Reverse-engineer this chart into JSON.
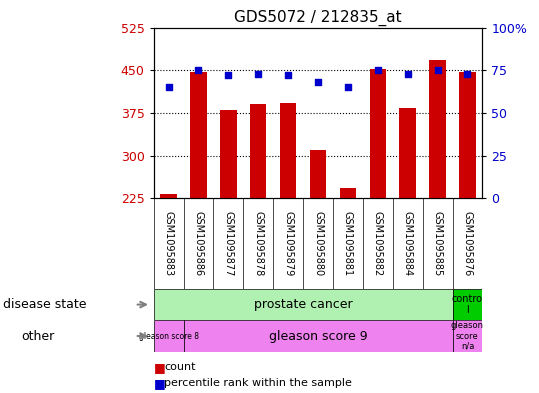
{
  "title": "GDS5072 / 212835_at",
  "samples": [
    "GSM1095883",
    "GSM1095886",
    "GSM1095877",
    "GSM1095878",
    "GSM1095879",
    "GSM1095880",
    "GSM1095881",
    "GSM1095882",
    "GSM1095884",
    "GSM1095885",
    "GSM1095876"
  ],
  "counts": [
    232,
    447,
    381,
    390,
    393,
    310,
    243,
    453,
    383,
    468,
    447
  ],
  "percentiles": [
    65,
    75,
    72,
    73,
    72,
    68,
    65,
    75,
    73,
    75,
    73
  ],
  "ylim_left": [
    225,
    525
  ],
  "yticks_left": [
    225,
    300,
    375,
    450,
    525
  ],
  "yticks_right": [
    0,
    25,
    50,
    75,
    100
  ],
  "ytick_labels_right": [
    "0",
    "25",
    "50",
    "75",
    "100%"
  ],
  "bar_color": "#cc0000",
  "dot_color": "#0000cc",
  "bar_bottom": 225,
  "label_bg": "#c8c8c8",
  "ds_cancer_color": "#b0f0b0",
  "ds_control_color": "#00cc00",
  "other_color": "#ee82ee",
  "background_color": "#ffffff",
  "tick_color_left": "#cc0000",
  "tick_color_right": "#0000cc"
}
